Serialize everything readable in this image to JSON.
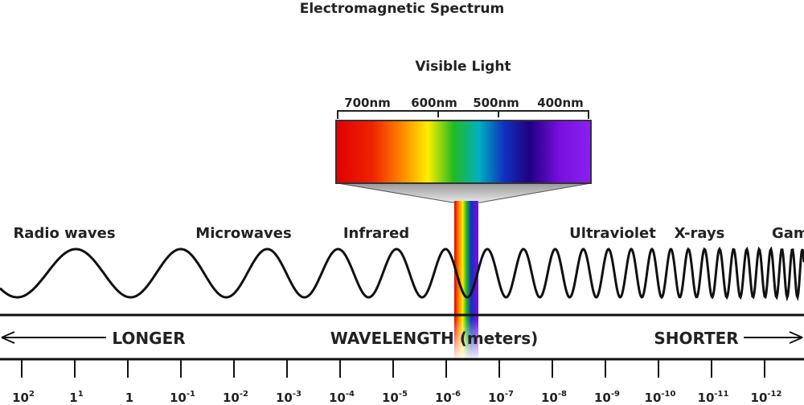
{
  "title": "Electromagnetic Spectrum",
  "visible": {
    "label": "Visible Light",
    "nm": [
      "700nm",
      "600nm",
      "500nm",
      "400nm"
    ]
  },
  "waves": [
    "Radio waves",
    "Microwaves",
    "Infrared",
    "Ultraviolet",
    "X-rays",
    "Gam"
  ],
  "axis": {
    "left": "LONGER",
    "center": "WAVELENGTH (meters)",
    "right": "SHORTER"
  },
  "ticks": [
    {
      "base": "10",
      "exp": "2"
    },
    {
      "base": "1",
      "exp": "1"
    },
    {
      "base": "1",
      "exp": ""
    },
    {
      "base": "10",
      "exp": "-1"
    },
    {
      "base": "10",
      "exp": "-2"
    },
    {
      "base": "10",
      "exp": "-3"
    },
    {
      "base": "10",
      "exp": "-4"
    },
    {
      "base": "10",
      "exp": "-5"
    },
    {
      "base": "10",
      "exp": "-6"
    },
    {
      "base": "10",
      "exp": "-7"
    },
    {
      "base": "10",
      "exp": "-8"
    },
    {
      "base": "10",
      "exp": "-9"
    },
    {
      "base": "10",
      "exp": "-10"
    },
    {
      "base": "10",
      "exp": "-11"
    },
    {
      "base": "10",
      "exp": "-12"
    }
  ]
}
